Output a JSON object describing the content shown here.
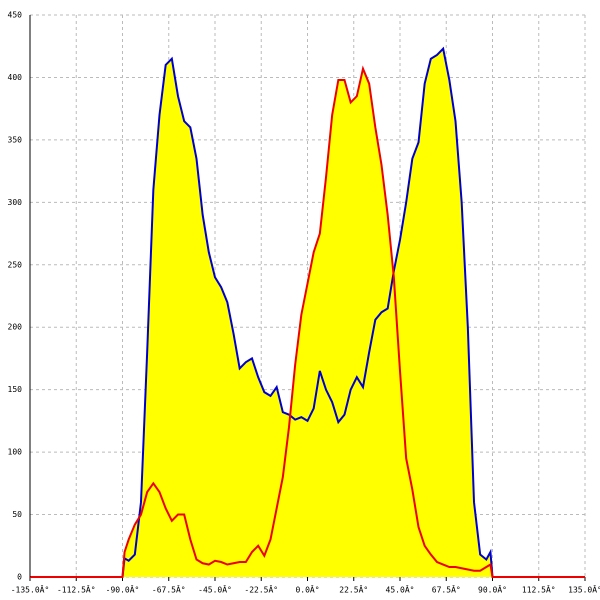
{
  "chart_data": {
    "type": "area",
    "x": [
      -135,
      -90,
      -89,
      -87,
      -84,
      -81,
      -78,
      -75,
      -72,
      -69,
      -66,
      -63,
      -60,
      -57,
      -54,
      -51,
      -48,
      -45,
      -42,
      -39,
      -36,
      -33,
      -30,
      -27,
      -24,
      -21,
      -18,
      -15,
      -12,
      -9,
      -6,
      -3,
      0,
      3,
      6,
      9,
      12,
      15,
      18,
      21,
      24,
      27,
      30,
      33,
      36,
      39,
      42,
      45,
      48,
      51,
      54,
      57,
      60,
      63,
      66,
      69,
      72,
      75,
      78,
      81,
      84,
      87,
      89,
      90,
      135
    ],
    "series": [
      {
        "color": "#0000cc",
        "fill": "#ffff00",
        "values": [
          0,
          0,
          15,
          13,
          18,
          60,
          180,
          310,
          370,
          410,
          415,
          385,
          365,
          360,
          335,
          290,
          260,
          240,
          232,
          220,
          195,
          167,
          172,
          175,
          160,
          148,
          145,
          152,
          132,
          130,
          126,
          128,
          125,
          135,
          165,
          150,
          140,
          124,
          130,
          150,
          160,
          152,
          180,
          206,
          212,
          215,
          245,
          270,
          300,
          335,
          348,
          395,
          415,
          418,
          423,
          398,
          365,
          300,
          200,
          60,
          18,
          14,
          20,
          0,
          0
        ]
      },
      {
        "color": "#ee0000",
        "fill": "#ffff00",
        "values": [
          0,
          0,
          20,
          30,
          42,
          50,
          68,
          75,
          68,
          55,
          45,
          50,
          50,
          30,
          14,
          11,
          10,
          13,
          12,
          10,
          11,
          12,
          12,
          20,
          25,
          17,
          30,
          55,
          80,
          120,
          170,
          210,
          235,
          260,
          275,
          320,
          370,
          398,
          398,
          380,
          385,
          407,
          395,
          360,
          330,
          290,
          240,
          165,
          95,
          70,
          40,
          25,
          18,
          12,
          10,
          8,
          8,
          7,
          6,
          5,
          5,
          8,
          10,
          0,
          0
        ]
      }
    ],
    "xlim": [
      -135,
      135
    ],
    "xticks": [
      {
        "value": -135,
        "label": "-135.0Â°"
      },
      {
        "value": -112.5,
        "label": "-112.5Â°"
      },
      {
        "value": -90,
        "label": "-90.0Â°"
      },
      {
        "value": -67.5,
        "label": "-67.5Â°"
      },
      {
        "value": -45,
        "label": "-45.0Â°"
      },
      {
        "value": -22.5,
        "label": "-22.5Â°"
      },
      {
        "value": 0,
        "label": "0.0Â°"
      },
      {
        "value": 22.5,
        "label": "22.5Â°"
      },
      {
        "value": 45,
        "label": "45.0Â°"
      },
      {
        "value": 67.5,
        "label": "67.5Â°"
      },
      {
        "value": 90,
        "label": "90.0Â°"
      },
      {
        "value": 112.5,
        "label": "112.5Â°"
      },
      {
        "value": 135,
        "label": "135.0Â°"
      }
    ],
    "ylim": [
      0,
      450
    ],
    "yticks": [
      0,
      50,
      100,
      150,
      200,
      250,
      300,
      350,
      400,
      450
    ],
    "grid": true
  }
}
